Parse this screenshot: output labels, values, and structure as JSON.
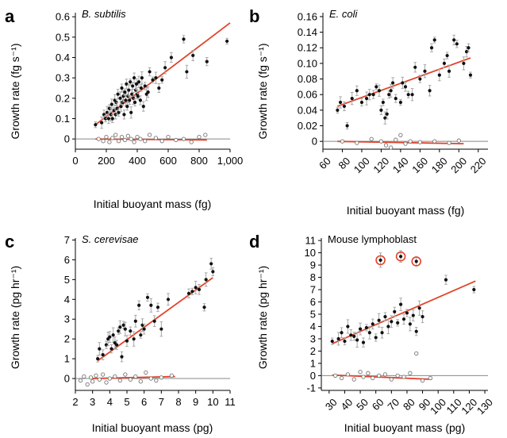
{
  "colors": {
    "fit_line": "#e0452b",
    "points": "#111111",
    "control_points": "#777777",
    "error_bars": "#a8a8a8",
    "zero_line": "#888888"
  },
  "chart_data": [
    {
      "type": "scatter",
      "panel": "a",
      "title": "B. subtilis",
      "title_italic": true,
      "xlabel": "Initial buoyant mass (fg)",
      "ylabel": "Growth rate (fg s⁻¹)",
      "xlim": [
        0,
        1000
      ],
      "ylim": [
        -0.05,
        0.62
      ],
      "x_ticks": [
        0,
        200,
        400,
        600,
        800,
        1000
      ],
      "x_tick_labels": [
        "0",
        "200",
        "400",
        "600",
        "800",
        "1,000"
      ],
      "y_ticks": [
        0,
        0.1,
        0.2,
        0.3,
        0.4,
        0.5,
        0.6
      ],
      "y_tick_labels": [
        "0",
        "0.1",
        "0.2",
        "0.3",
        "0.4",
        "0.5",
        "0.6"
      ],
      "x_tick_rotate": false,
      "series": [
        {
          "kind": "growth",
          "x": [
            130,
            170,
            185,
            195,
            205,
            215,
            220,
            230,
            235,
            240,
            250,
            255,
            260,
            265,
            270,
            275,
            280,
            290,
            295,
            300,
            305,
            310,
            315,
            320,
            325,
            330,
            335,
            340,
            345,
            350,
            355,
            360,
            365,
            370,
            375,
            380,
            385,
            390,
            395,
            400,
            405,
            410,
            420,
            425,
            430,
            440,
            450,
            460,
            470,
            480,
            500,
            520,
            540,
            560,
            580,
            620,
            700,
            720,
            760,
            850,
            980
          ],
          "y": [
            0.07,
            0.08,
            0.12,
            0.1,
            0.13,
            0.1,
            0.15,
            0.12,
            0.17,
            0.1,
            0.14,
            0.19,
            0.12,
            0.18,
            0.15,
            0.22,
            0.13,
            0.2,
            0.16,
            0.25,
            0.18,
            0.21,
            0.12,
            0.23,
            0.19,
            0.27,
            0.16,
            0.21,
            0.24,
            0.19,
            0.28,
            0.13,
            0.22,
            0.26,
            0.2,
            0.3,
            0.18,
            0.24,
            0.27,
            0.22,
            0.21,
            0.28,
            0.19,
            0.25,
            0.3,
            0.16,
            0.26,
            0.22,
            0.23,
            0.33,
            0.29,
            0.3,
            0.25,
            0.29,
            0.35,
            0.4,
            0.49,
            0.33,
            0.41,
            0.38,
            0.48
          ]
        },
        {
          "kind": "control",
          "x": [
            150,
            180,
            200,
            220,
            240,
            260,
            280,
            300,
            320,
            340,
            360,
            380,
            400,
            420,
            450,
            480,
            520,
            560,
            600,
            650,
            700,
            750,
            800,
            840
          ],
          "y": [
            0.0,
            -0.01,
            0.01,
            -0.015,
            0.005,
            0.02,
            -0.01,
            0.01,
            -0.005,
            0.015,
            0.0,
            -0.015,
            0.01,
            0.0,
            -0.01,
            0.02,
            0.005,
            -0.01,
            0.01,
            -0.005,
            0.0,
            -0.015,
            0.01,
            0.02
          ]
        }
      ],
      "fits": [
        {
          "kind": "growth",
          "x": [
            130,
            1000
          ],
          "y": [
            0.07,
            0.57
          ]
        },
        {
          "kind": "control",
          "x": [
            130,
            850
          ],
          "y": [
            0.0,
            -0.005
          ]
        }
      ]
    },
    {
      "type": "scatter",
      "panel": "b",
      "title": "E. coli",
      "title_italic": true,
      "xlabel": "Initial buoyant mass (fg)",
      "ylabel": "Growth rate (fg s⁻¹)",
      "xlim": [
        60,
        230
      ],
      "ylim": [
        -0.01,
        0.165
      ],
      "x_ticks": [
        60,
        80,
        100,
        120,
        140,
        160,
        180,
        200,
        220
      ],
      "x_tick_labels": [
        "60",
        "80",
        "100",
        "120",
        "140",
        "160",
        "180",
        "200",
        "220"
      ],
      "y_ticks": [
        0,
        0.02,
        0.04,
        0.06,
        0.08,
        0.1,
        0.12,
        0.14,
        0.16
      ],
      "y_tick_labels": [
        "0",
        "0.02",
        "0.04",
        "0.06",
        "0.08",
        "0.10",
        "0.12",
        "0.14",
        "0.16"
      ],
      "x_tick_rotate": true,
      "series": [
        {
          "kind": "growth",
          "x": [
            75,
            78,
            82,
            85,
            90,
            95,
            100,
            105,
            108,
            112,
            115,
            118,
            120,
            122,
            124,
            126,
            128,
            130,
            132,
            135,
            140,
            142,
            145,
            148,
            152,
            155,
            160,
            165,
            170,
            172,
            175,
            180,
            185,
            188,
            190,
            195,
            198,
            205,
            208,
            210,
            212
          ],
          "y": [
            0.04,
            0.05,
            0.045,
            0.02,
            0.055,
            0.065,
            0.05,
            0.055,
            0.06,
            0.06,
            0.07,
            0.065,
            0.04,
            0.05,
            0.03,
            0.035,
            0.06,
            0.065,
            0.075,
            0.055,
            0.05,
            0.075,
            0.07,
            0.06,
            0.06,
            0.095,
            0.08,
            0.09,
            0.065,
            0.12,
            0.13,
            0.085,
            0.1,
            0.11,
            0.09,
            0.13,
            0.125,
            0.1,
            0.115,
            0.12,
            0.085
          ]
        },
        {
          "kind": "control",
          "x": [
            80,
            95,
            110,
            120,
            125,
            130,
            135,
            140,
            145,
            150,
            160,
            175,
            190,
            200
          ],
          "y": [
            0.0,
            -0.002,
            0.003,
            0.0,
            -0.005,
            -0.008,
            0.002,
            0.008,
            -0.003,
            0.0,
            -0.001,
            0.0,
            -0.002,
            0.001
          ]
        }
      ],
      "fits": [
        {
          "kind": "growth",
          "x": [
            75,
            212
          ],
          "y": [
            0.045,
            0.107
          ]
        },
        {
          "kind": "control",
          "x": [
            75,
            205
          ],
          "y": [
            0.0,
            -0.003
          ]
        }
      ]
    },
    {
      "type": "scatter",
      "panel": "c",
      "title": "S. cerevisae",
      "title_italic": true,
      "xlabel": "Initial buoyant mass (pg)",
      "ylabel": "Growth rate (pg hr⁻¹)",
      "xlim": [
        2,
        11
      ],
      "ylim": [
        -0.6,
        7.1
      ],
      "x_ticks": [
        2,
        3,
        4,
        5,
        6,
        7,
        8,
        9,
        10,
        11
      ],
      "x_tick_labels": [
        "2",
        "3",
        "4",
        "5",
        "6",
        "7",
        "8",
        "9",
        "10",
        "11"
      ],
      "y_ticks": [
        0,
        1,
        2,
        3,
        4,
        5,
        6,
        7
      ],
      "y_tick_labels": [
        "0",
        "1",
        "2",
        "3",
        "4",
        "5",
        "6",
        "7"
      ],
      "x_tick_rotate": false,
      "series": [
        {
          "kind": "growth",
          "x": [
            3.3,
            3.4,
            3.6,
            3.8,
            3.9,
            4.0,
            4.1,
            4.2,
            4.3,
            4.4,
            4.5,
            4.6,
            4.7,
            4.8,
            4.9,
            5.0,
            5.2,
            5.4,
            5.5,
            5.7,
            5.8,
            5.9,
            6.0,
            6.2,
            6.4,
            6.6,
            6.8,
            7.0,
            7.4,
            8.6,
            8.8,
            9.0,
            9.2,
            9.5,
            9.6,
            9.9,
            10.0
          ],
          "y": [
            1.0,
            1.5,
            1.2,
            1.7,
            2.0,
            2.1,
            1.5,
            2.2,
            1.8,
            1.7,
            2.4,
            2.6,
            1.1,
            2.7,
            2.5,
            1.9,
            2.4,
            2.0,
            2.9,
            3.7,
            2.2,
            2.7,
            2.5,
            4.1,
            3.7,
            2.9,
            3.6,
            2.5,
            4.0,
            4.3,
            4.4,
            4.6,
            4.5,
            3.6,
            5.0,
            5.8,
            5.4
          ]
        },
        {
          "kind": "control",
          "x": [
            2.3,
            2.5,
            2.7,
            2.9,
            3.0,
            3.2,
            3.4,
            3.6,
            3.8,
            4.0,
            4.3,
            4.6,
            4.9,
            5.2,
            5.5,
            5.8,
            6.1,
            6.4,
            6.7,
            7.0,
            7.6
          ],
          "y": [
            -0.1,
            0.1,
            -0.3,
            0.05,
            -0.15,
            0.15,
            -0.05,
            0.2,
            -0.2,
            0.0,
            0.1,
            -0.1,
            0.2,
            -0.05,
            0.1,
            -0.15,
            0.3,
            0.0,
            -0.1,
            0.05,
            0.15
          ]
        }
      ],
      "fits": [
        {
          "kind": "growth",
          "x": [
            3.3,
            10.0
          ],
          "y": [
            0.9,
            5.1
          ]
        },
        {
          "kind": "control",
          "x": [
            3.0,
            7.8
          ],
          "y": [
            0.0,
            0.1
          ]
        }
      ]
    },
    {
      "type": "scatter",
      "panel": "d",
      "title": "Mouse lymphoblast",
      "title_italic": false,
      "xlabel": "Initial buoyant mass (pg)",
      "ylabel": "Growth rate (pg hr⁻¹)",
      "xlim": [
        25,
        132
      ],
      "ylim": [
        -1.2,
        11.2
      ],
      "x_ticks": [
        30,
        40,
        50,
        60,
        70,
        80,
        90,
        100,
        110,
        120,
        130
      ],
      "x_tick_labels": [
        "30",
        "40",
        "50",
        "60",
        "70",
        "80",
        "90",
        "100",
        "110",
        "120",
        "130"
      ],
      "y_ticks": [
        -1,
        0,
        1,
        2,
        3,
        4,
        5,
        6,
        7,
        8,
        9,
        10,
        11
      ],
      "y_tick_labels": [
        "-1",
        "0",
        "1",
        "2",
        "3",
        "4",
        "5",
        "6",
        "7",
        "8",
        "9",
        "10",
        "11"
      ],
      "x_tick_rotate": true,
      "series": [
        {
          "kind": "growth",
          "x": [
            32,
            36,
            38,
            40,
            42,
            44,
            46,
            48,
            50,
            52,
            54,
            56,
            58,
            60,
            62,
            64,
            66,
            68,
            70,
            72,
            74,
            76,
            78,
            80,
            82,
            84,
            86,
            88,
            90,
            105,
            123
          ],
          "y": [
            2.8,
            3.0,
            3.5,
            2.8,
            4.0,
            3.3,
            3.2,
            2.9,
            3.8,
            2.7,
            3.9,
            3.5,
            4.2,
            3.1,
            4.5,
            3.5,
            4.8,
            4.0,
            4.4,
            5.2,
            4.3,
            5.8,
            4.6,
            5.1,
            4.2,
            4.9,
            3.6,
            5.5,
            4.8,
            7.8,
            7.0
          ]
        },
        {
          "kind": "outlier",
          "x": [
            63,
            76,
            86
          ],
          "y": [
            9.4,
            9.7,
            9.3
          ]
        },
        {
          "kind": "control",
          "x": [
            34,
            38,
            42,
            46,
            50,
            52,
            55,
            58,
            62,
            66,
            70,
            74,
            78,
            82,
            86,
            90,
            95
          ],
          "y": [
            0.0,
            -0.2,
            0.1,
            -0.3,
            0.3,
            -0.1,
            0.2,
            -0.2,
            0.0,
            0.1,
            -0.3,
            0.0,
            -0.1,
            0.2,
            1.8,
            -0.4,
            -0.2
          ]
        }
      ],
      "fits": [
        {
          "kind": "growth",
          "x": [
            32,
            124
          ],
          "y": [
            2.6,
            7.7
          ]
        },
        {
          "kind": "control",
          "x": [
            32,
            96
          ],
          "y": [
            0.05,
            -0.3
          ]
        }
      ]
    }
  ]
}
